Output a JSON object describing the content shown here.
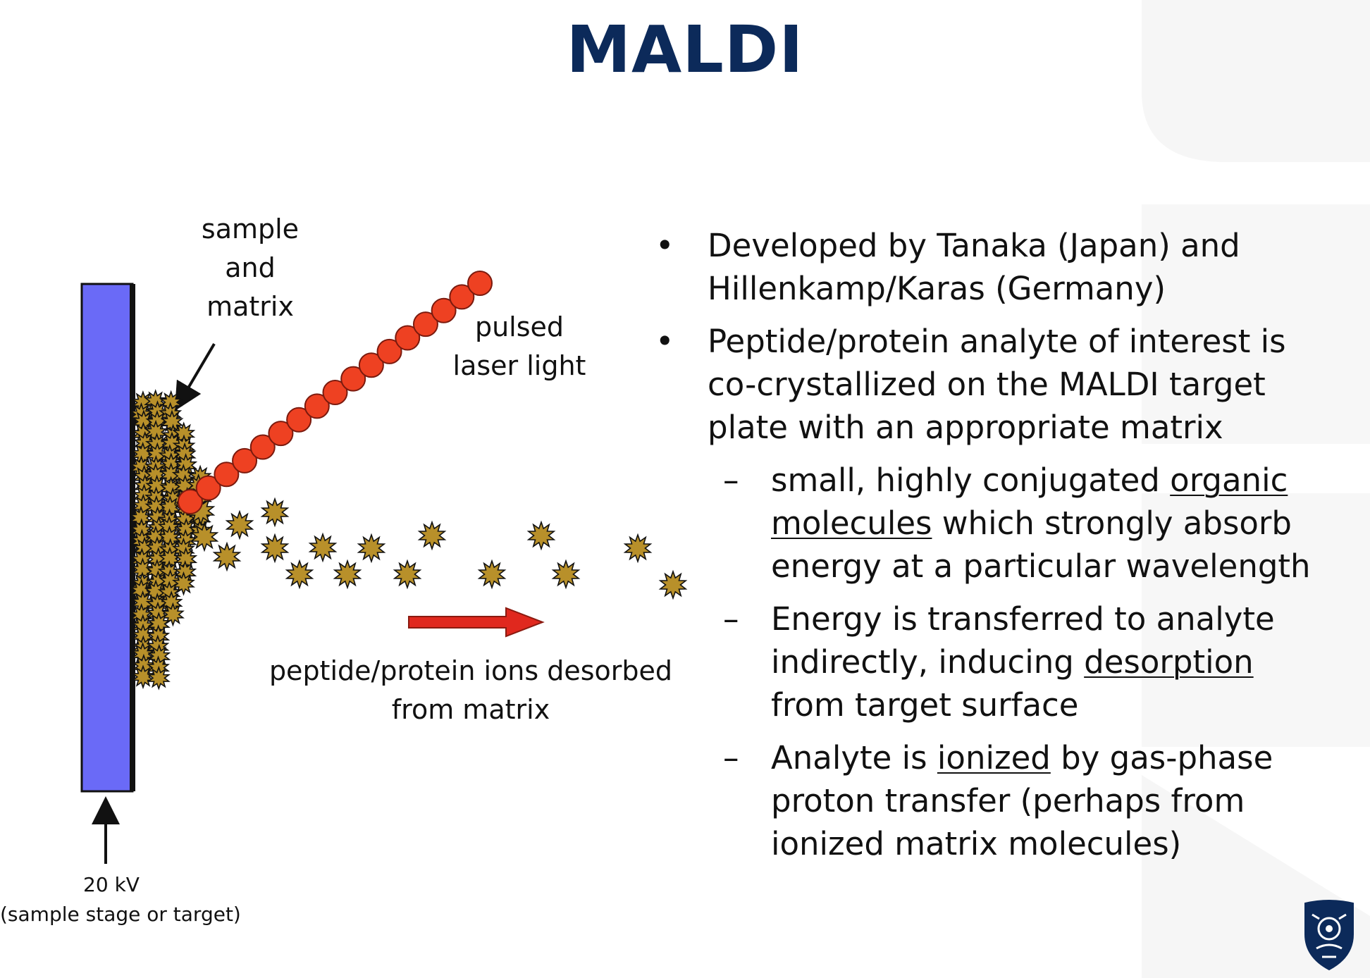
{
  "title": "MALDI",
  "diagram": {
    "sample_label": [
      "sample",
      "and",
      "matrix"
    ],
    "laser_label": [
      "pulsed",
      "laser light"
    ],
    "ions_label": [
      "peptide/protein ions desorbed",
      "from matrix"
    ],
    "voltage_label": [
      "20 kV",
      "(sample stage or target)"
    ]
  },
  "bullets": [
    {
      "marker": "•",
      "lines": [
        [
          {
            "t": "Developed by Tanaka (Japan) and"
          }
        ],
        [
          {
            "t": "Hillenkamp/Karas (Germany)"
          }
        ]
      ]
    },
    {
      "marker": "•",
      "lines": [
        [
          {
            "t": "Peptide/protein analyte of interest is"
          }
        ],
        [
          {
            "t": "co-crystallized on the MALDI target"
          }
        ],
        [
          {
            "t": "plate with an appropriate matrix"
          }
        ]
      ],
      "sub": [
        {
          "marker": "–",
          "lines": [
            [
              {
                "t": "small, highly conjugated "
              },
              {
                "t": "organic",
                "u": true
              }
            ],
            [
              {
                "t": "molecules",
                "u": true
              },
              {
                "t": " which strongly absorb"
              }
            ],
            [
              {
                "t": "energy at a particular wavelength"
              }
            ]
          ]
        },
        {
          "marker": "–",
          "lines": [
            [
              {
                "t": "Energy is transferred to analyte"
              }
            ],
            [
              {
                "t": "indirectly, inducing "
              },
              {
                "t": "desorption",
                "u": true
              }
            ],
            [
              {
                "t": "from target surface"
              }
            ]
          ]
        },
        {
          "marker": "–",
          "lines": [
            [
              {
                "t": "Analyte is "
              },
              {
                "t": "ionized",
                "u": true
              },
              {
                "t": " by gas-phase"
              }
            ],
            [
              {
                "t": "proton transfer (perhaps from"
              }
            ],
            [
              {
                "t": "ionized matrix molecules)"
              }
            ]
          ]
        }
      ]
    }
  ],
  "colors": {
    "title": "#0c2a5a",
    "plate": "#6a6af7",
    "laser": "#ee4122",
    "star_fill": "#b8902a",
    "arrow": "#e0281e"
  }
}
